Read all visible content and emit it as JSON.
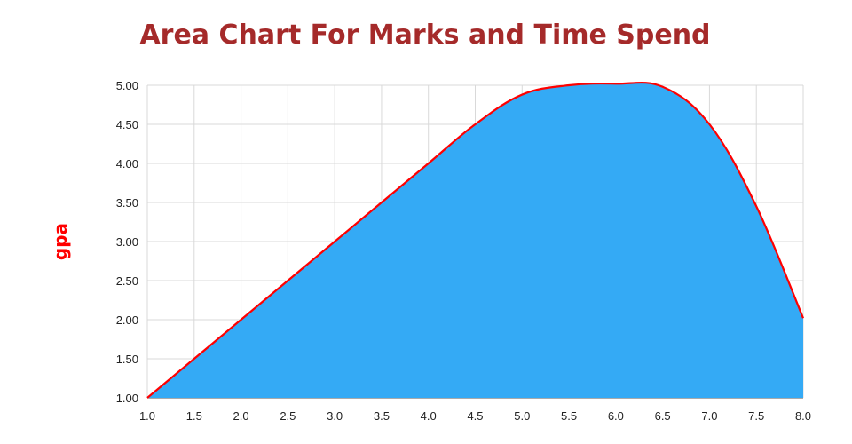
{
  "chart_data": {
    "type": "area",
    "title": "Area Chart For Marks and Time Spend",
    "xlabel": "",
    "ylabel": "gpa",
    "x": [
      1.0,
      1.5,
      2.0,
      2.5,
      3.0,
      3.5,
      4.0,
      4.5,
      5.0,
      5.5,
      6.0,
      6.5,
      7.0,
      7.5,
      8.0
    ],
    "y": [
      1.0,
      1.5,
      2.0,
      2.5,
      3.0,
      3.5,
      4.0,
      4.5,
      4.88,
      5.0,
      5.02,
      4.98,
      4.5,
      3.45,
      2.02
    ],
    "xlim": [
      1.0,
      8.0
    ],
    "ylim": [
      1.0,
      5.0
    ],
    "x_ticks": [
      "1.0",
      "1.5",
      "2.0",
      "2.5",
      "3.0",
      "3.5",
      "4.0",
      "4.5",
      "5.0",
      "5.5",
      "6.0",
      "6.5",
      "7.0",
      "7.5",
      "8.0"
    ],
    "y_ticks": [
      "1.00",
      "1.50",
      "2.00",
      "2.50",
      "3.00",
      "3.50",
      "4.00",
      "4.50",
      "5.00"
    ],
    "grid": true,
    "colors": {
      "fill": "#34aaf5",
      "line": "#ff0000",
      "title": "#a52a2a",
      "ylabel": "#ff0000",
      "grid": "#d9d9d9"
    }
  }
}
